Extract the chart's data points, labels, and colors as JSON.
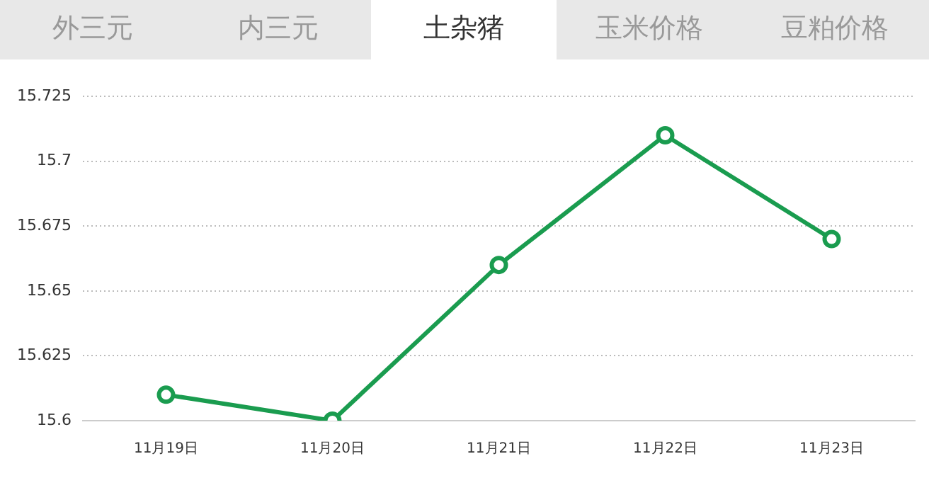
{
  "chart_data": {
    "type": "line",
    "title": "土杂猪",
    "annotations": [
      "外三元",
      "内三元",
      "玉米价格",
      "豆粕价格"
    ],
    "categories": [
      "11月19日",
      "11月20日",
      "11月21日",
      "11月22日",
      "11月23日"
    ],
    "series": [
      {
        "color": "#1a9c4f",
        "values": [
          15.61,
          15.6,
          15.66,
          15.71,
          15.67
        ]
      }
    ],
    "ylim": [
      15.6,
      15.725
    ],
    "yticks": [
      15.6,
      15.625,
      15.65,
      15.675,
      15.7,
      15.725
    ],
    "grid": "y",
    "legend": false,
    "marker": "circle",
    "line_style": "solid"
  }
}
